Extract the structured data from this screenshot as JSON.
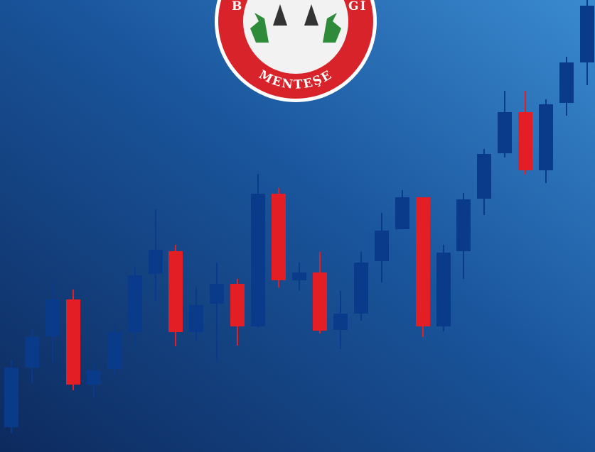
{
  "logo": {
    "arc_left": "B",
    "arc_right": "Gİ",
    "text": "MENTEŞE"
  }
}
